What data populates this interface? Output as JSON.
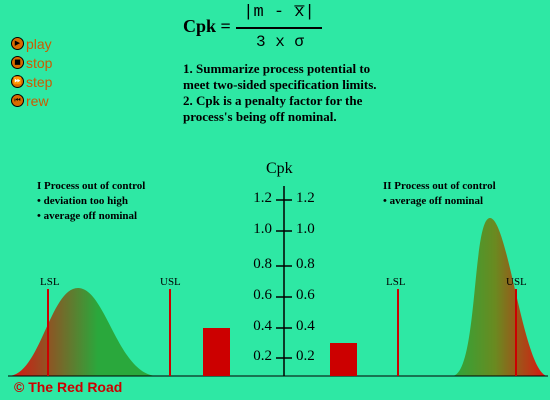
{
  "controls": [
    {
      "label": "play",
      "icon": "play-icon",
      "glyph": "▶"
    },
    {
      "label": "stop",
      "icon": "stop-icon",
      "glyph": "■"
    },
    {
      "label": "step",
      "icon": "step-icon",
      "glyph": "⏩"
    },
    {
      "label": "rew",
      "icon": "rewind-icon",
      "glyph": "⏮"
    }
  ],
  "formula": {
    "lhs": "Cpk =",
    "numerator": "|m - x̅̅|",
    "denominator": "3 x σ"
  },
  "notes": [
    "1. Summarize process potential to meet two-sided specification limits.",
    "2. Cpk is a penalty factor for the process's being off nominal."
  ],
  "case1": {
    "title": "I  Process out of control",
    "bullets": [
      "• deviation too high",
      "• average off nominal"
    ]
  },
  "case2": {
    "title": "II  Process out of control",
    "bullets": [
      "• average off nominal"
    ]
  },
  "labels": {
    "lsl": "LSL",
    "usl": "USL"
  },
  "axis": {
    "title": "Cpk",
    "ticks": [
      "1.2",
      "1.0",
      "0.8",
      "0.6",
      "0.4",
      "0.2"
    ]
  },
  "bars": {
    "case1_cpk": 0.4,
    "case2_cpk": 0.3
  },
  "colors": {
    "background": "#2ee8a4",
    "curve_green": "#2aa83c",
    "curve_red": "#e01010",
    "limit_line": "#cc0000",
    "bar": "#cc0000"
  },
  "copyright": "© The Red Road"
}
